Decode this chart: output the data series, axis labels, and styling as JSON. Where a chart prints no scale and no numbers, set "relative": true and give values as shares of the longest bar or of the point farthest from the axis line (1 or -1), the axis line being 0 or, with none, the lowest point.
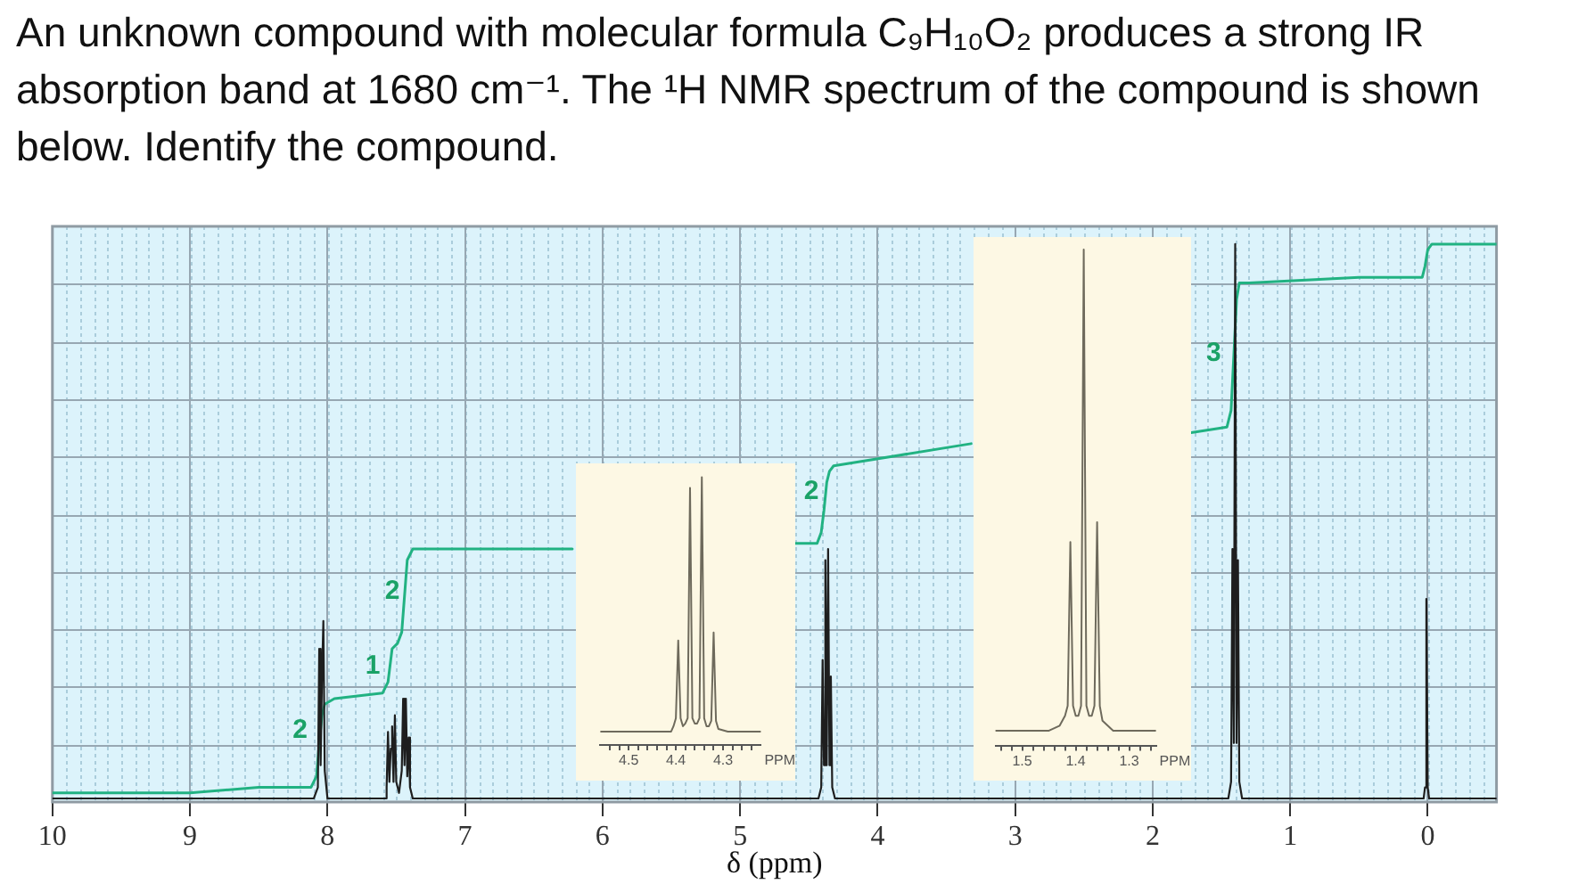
{
  "chart_data": [
    {
      "type": "line",
      "title": "An unknown compound with molecular formula C₉H₁₀O₂ produces a strong IR absorption band at 1680 cm⁻¹. The ¹H NMR spectrum of the compound is shown below. Identify the compound.",
      "xlabel": "δ (ppm)",
      "relative": true,
      "xlim": [
        10,
        -0.5
      ],
      "xticks": [
        10,
        9,
        8,
        7,
        6,
        5,
        4,
        3,
        2,
        1,
        0
      ],
      "grid": true,
      "series": [
        {
          "color": "#1e1e1e",
          "x": [
            10,
            8.1,
            8.07,
            8.06,
            8.05,
            8.04,
            8.03,
            8.02,
            8,
            7.58,
            7.57,
            7.56,
            7.55,
            7.54,
            7.53,
            7.52,
            7.51,
            7.5,
            7.48,
            7.46,
            7.45,
            7.44,
            7.43,
            7.42,
            7.41,
            7.4,
            7.38,
            4.43,
            4.41,
            4.4,
            4.39,
            4.38,
            4.37,
            4.36,
            4.35,
            4.34,
            4.33,
            4.31,
            1.45,
            1.43,
            1.42,
            1.41,
            1.4,
            1.39,
            1.38,
            1.37,
            1.35,
            0.03,
            0.02,
            0.01,
            0,
            -0.01,
            -0.5
          ],
          "values": [
            0,
            0,
            0.02,
            0.27,
            0.06,
            0.22,
            0.32,
            0.05,
            0,
            0,
            0.02,
            0.12,
            0.03,
            0.09,
            0.13,
            0.03,
            0.15,
            0.03,
            0.01,
            0.05,
            0.18,
            0.06,
            0.18,
            0.04,
            0.11,
            0.02,
            0,
            0,
            0.02,
            0.25,
            0.06,
            0.43,
            0.06,
            0.45,
            0.06,
            0.22,
            0.02,
            0,
            0,
            0.03,
            0.45,
            0.1,
            1,
            0.1,
            0.43,
            0.03,
            0,
            0,
            0.02,
            0.36,
            0.02,
            0,
            0
          ]
        },
        {
          "color": "#21b282",
          "x": [
            10,
            9,
            8.5,
            8.12,
            8.08,
            8.06,
            8.04,
            8.02,
            7.95,
            7.6,
            7.56,
            7.53,
            7.49,
            7.46,
            7.42,
            7.38,
            6.22,
            5.4,
            4.6,
            4.44,
            4.41,
            4.39,
            4.37,
            4.35,
            4.32,
            3.32,
            2.5,
            1.72,
            1.46,
            1.43,
            1.41,
            1.39,
            1.37,
            1.3,
            0.5,
            0.04,
            0.02,
            0,
            -0.03,
            -0.5
          ],
          "values": [
            0.01,
            0.01,
            0.02,
            0.02,
            0.04,
            0.1,
            0.15,
            0.17,
            0.18,
            0.19,
            0.21,
            0.27,
            0.28,
            0.3,
            0.43,
            0.45,
            0.45,
            null,
            0.46,
            0.46,
            0.48,
            0.52,
            0.57,
            0.59,
            0.6,
            0.64,
            null,
            0.66,
            0.67,
            0.7,
            0.8,
            0.9,
            0.93,
            0.93,
            0.94,
            0.94,
            0.96,
            0.99,
            1,
            1
          ]
        }
      ],
      "annotations": [
        "2",
        "1",
        "2",
        "2",
        "3"
      ]
    },
    {
      "type": "line",
      "xlabel": "PPM",
      "relative": true,
      "xlim": [
        4.56,
        4.22
      ],
      "xticks": [
        {
          "value": 4.54,
          "label": null
        },
        {
          "value": 4.52,
          "label": null
        },
        4.5,
        {
          "value": 4.48,
          "label": null
        },
        {
          "value": 4.46,
          "label": null
        },
        {
          "value": 4.44,
          "label": null
        },
        {
          "value": 4.42,
          "label": null
        },
        4.4,
        {
          "value": 4.38,
          "label": null
        },
        {
          "value": 4.36,
          "label": null
        },
        {
          "value": 4.34,
          "label": null
        },
        {
          "value": 4.32,
          "label": null
        },
        4.3,
        {
          "value": 4.28,
          "label": null
        },
        {
          "value": 4.26,
          "label": null
        },
        {
          "value": 4.24,
          "label": null
        }
      ],
      "series": [
        {
          "color": "#6e6a5c",
          "x": [
            4.56,
            4.41,
            4.405,
            4.4,
            4.395,
            4.39,
            4.385,
            4.38,
            4.375,
            4.37,
            4.365,
            4.36,
            4.355,
            4.35,
            4.345,
            4.34,
            4.335,
            4.33,
            4.325,
            4.32,
            4.315,
            4.31,
            4.29,
            4.22
          ],
          "values": [
            0.05,
            0.05,
            0.07,
            0.1,
            0.39,
            0.1,
            0.07,
            0.08,
            0.1,
            0.96,
            0.1,
            0.08,
            0.08,
            0.1,
            1,
            0.1,
            0.07,
            0.07,
            0.09,
            0.42,
            0.09,
            0.06,
            0.05,
            0.05
          ]
        }
      ]
    },
    {
      "type": "line",
      "xlabel": "PPM",
      "relative": true,
      "xlim": [
        1.55,
        1.25
      ],
      "xticks": [
        {
          "value": 1.54,
          "label": null
        },
        {
          "value": 1.52,
          "label": null
        },
        1.5,
        {
          "value": 1.48,
          "label": null
        },
        {
          "value": 1.46,
          "label": null
        },
        {
          "value": 1.44,
          "label": null
        },
        {
          "value": 1.42,
          "label": null
        },
        1.4,
        {
          "value": 1.38,
          "label": null
        },
        {
          "value": 1.36,
          "label": null
        },
        {
          "value": 1.34,
          "label": null
        },
        {
          "value": 1.32,
          "label": null
        },
        1.3,
        {
          "value": 1.28,
          "label": null
        },
        {
          "value": 1.26,
          "label": null
        }
      ],
      "series": [
        {
          "color": "#6e6a5c",
          "x": [
            1.55,
            1.45,
            1.43,
            1.42,
            1.415,
            1.41,
            1.405,
            1.4,
            1.395,
            1.39,
            1.385,
            1.38,
            1.375,
            1.37,
            1.365,
            1.36,
            1.355,
            1.35,
            1.33,
            1.25
          ],
          "values": [
            0.03,
            0.03,
            0.04,
            0.06,
            0.08,
            0.41,
            0.08,
            0.06,
            0.06,
            0.08,
            1,
            0.08,
            0.06,
            0.06,
            0.08,
            0.45,
            0.08,
            0.05,
            0.03,
            0.03
          ]
        }
      ]
    }
  ]
}
